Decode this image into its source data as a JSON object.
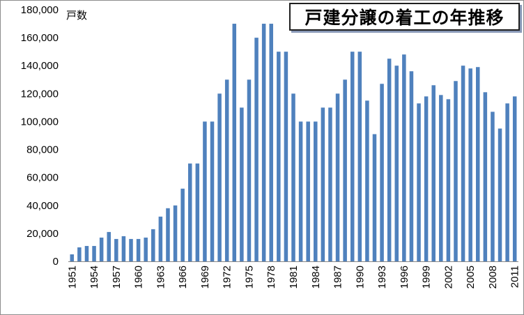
{
  "chart_data": {
    "type": "bar",
    "title": "戸建分譲の着工の年推移",
    "ylabel": "戸数",
    "xlabel": "",
    "ylim": [
      0,
      180000
    ],
    "y_ticks": [
      "0",
      "20,000",
      "40,000",
      "60,000",
      "80,000",
      "100,000",
      "120,000",
      "140,000",
      "160,000",
      "180,000"
    ],
    "x_tick_labels": [
      "1951",
      "1954",
      "1957",
      "1960",
      "1963",
      "1966",
      "1969",
      "1972",
      "1975",
      "1978",
      "1981",
      "1984",
      "1987",
      "1990",
      "1993",
      "1996",
      "1999",
      "2002",
      "2005",
      "2008",
      "2011"
    ],
    "grid": false,
    "bar_color": "#4f81bd",
    "categories": [
      "1951",
      "1952",
      "1953",
      "1954",
      "1955",
      "1956",
      "1957",
      "1958",
      "1959",
      "1960",
      "1961",
      "1962",
      "1963",
      "1964",
      "1965",
      "1966",
      "1967",
      "1968",
      "1969",
      "1970",
      "1971",
      "1972",
      "1973",
      "1974",
      "1975",
      "1976",
      "1977",
      "1978",
      "1979",
      "1980",
      "1981",
      "1982",
      "1983",
      "1984",
      "1985",
      "1986",
      "1987",
      "1988",
      "1989",
      "1990",
      "1991",
      "1992",
      "1993",
      "1994",
      "1995",
      "1996",
      "1997",
      "1998",
      "1999",
      "2000",
      "2001",
      "2002",
      "2003",
      "2004",
      "2005",
      "2006",
      "2007",
      "2008",
      "2009",
      "2010",
      "2011"
    ],
    "values": [
      5000,
      10000,
      11000,
      11000,
      17000,
      21000,
      16000,
      18000,
      16000,
      16000,
      17000,
      23000,
      32000,
      38000,
      40000,
      52000,
      70000,
      70000,
      100000,
      100000,
      120000,
      130000,
      170000,
      110000,
      130000,
      160000,
      170000,
      170000,
      150000,
      150000,
      120000,
      100000,
      100000,
      100000,
      110000,
      110000,
      120000,
      130000,
      150000,
      150000,
      115000,
      91000,
      127000,
      145000,
      140000,
      148000,
      136000,
      113000,
      118000,
      126000,
      119000,
      116000,
      129000,
      140000,
      138000,
      139000,
      121000,
      107000,
      95000,
      113000,
      118000
    ]
  }
}
